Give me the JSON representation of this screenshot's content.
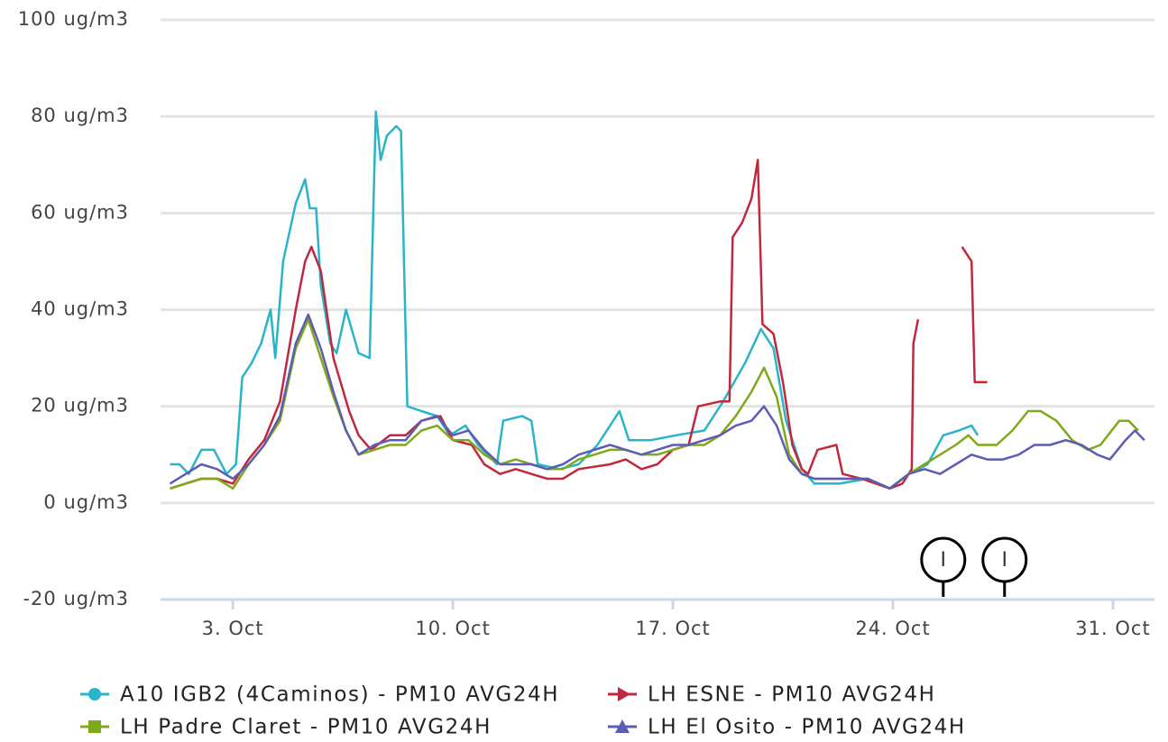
{
  "chart_data": {
    "type": "line",
    "xlim": [
      0.7,
      32.32
    ],
    "xticks": [
      {
        "value": 3,
        "label": "3. Oct"
      },
      {
        "value": 10,
        "label": "10. Oct"
      },
      {
        "value": 17,
        "label": "17. Oct"
      },
      {
        "value": 24,
        "label": "24. Oct"
      },
      {
        "value": 31,
        "label": "31. Oct"
      }
    ],
    "ylim": [
      -20,
      100
    ],
    "yticks": [
      {
        "value": -20,
        "label": "-20 ug/m3"
      },
      {
        "value": 0,
        "label": "0 ug/m3"
      },
      {
        "value": 20,
        "label": "20 ug/m3"
      },
      {
        "value": 40,
        "label": "40 ug/m3"
      },
      {
        "value": 60,
        "label": "60 ug/m3"
      },
      {
        "value": 80,
        "label": "80 ug/m3"
      },
      {
        "value": 100,
        "label": "100 ug/m3"
      }
    ],
    "grid": true,
    "legend": "bottom",
    "series": [
      {
        "name": "A10 IGB2 (4Caminos) - PM10 AVG24H",
        "color": "#2ab4c9",
        "marker": "circle",
        "x": [
          1,
          1.3,
          1.6,
          2,
          2.4,
          2.8,
          3.1,
          3.3,
          3.6,
          3.9,
          4.2,
          4.35,
          4.6,
          5.0,
          5.3,
          5.45,
          5.65,
          5.8,
          6.1,
          6.3,
          6.6,
          7.0,
          7.35,
          7.55,
          7.7,
          7.9,
          8.2,
          8.35,
          8.55,
          9.0,
          9.5,
          9.9,
          10.4,
          10.8,
          11.4,
          11.6,
          12.2,
          12.5,
          12.7,
          13.4,
          14.0,
          14.6,
          15.1,
          15.3,
          15.6,
          16.3,
          17.1,
          18.0,
          18.6,
          19.3,
          19.8,
          20.2,
          20.6,
          21.1,
          21.5,
          22.3,
          23.2,
          23.9,
          24.5,
          25.1,
          25.6,
          26.1,
          26.5,
          26.7
        ],
        "values": [
          8,
          8,
          6,
          11,
          11,
          6,
          8,
          26,
          29,
          33,
          40,
          30,
          50,
          62,
          67,
          61,
          61,
          45,
          33,
          31,
          40,
          31,
          30,
          81,
          71,
          76,
          78,
          77,
          20,
          19,
          18,
          14,
          16,
          12,
          8,
          17,
          18,
          17,
          8,
          7,
          8,
          12,
          17,
          19,
          13,
          13,
          14,
          15,
          21,
          29,
          36,
          32,
          17,
          7,
          4,
          4,
          5,
          3,
          6,
          8,
          14,
          15,
          16,
          14
        ]
      },
      {
        "name": "LH ESNE - PM10 AVG24H",
        "color": "#c1283e",
        "marker": "arrow",
        "x": [
          1,
          2,
          2.5,
          3,
          3.5,
          4,
          4.5,
          5,
          5.3,
          5.5,
          5.8,
          6.2,
          6.7,
          7,
          7.4,
          8,
          8.5,
          9,
          9.6,
          10,
          10.6,
          11,
          11.5,
          12,
          12.5,
          13,
          13.5,
          14,
          15,
          15.5,
          16,
          16.5,
          17,
          17.5,
          17.8,
          18.5,
          18.8,
          18.9,
          19.2,
          19.5,
          19.7,
          19.85,
          20.2,
          20.5,
          20.8,
          21.1,
          21.3,
          21.6,
          22.2,
          22.4,
          23,
          23.9,
          24.3,
          24.6,
          24.65,
          24.8,
          25.5,
          26.2,
          26.3,
          26.5,
          26.6,
          27.0
        ],
        "values": [
          3,
          5,
          5,
          4,
          9,
          13,
          21,
          40,
          50,
          53,
          48,
          30,
          19,
          14,
          11,
          14,
          14,
          17,
          18,
          13,
          12,
          8,
          6,
          7,
          6,
          5,
          5,
          7,
          8,
          9,
          7,
          8,
          11,
          12,
          20,
          21,
          21,
          55,
          58,
          63,
          71,
          37,
          35,
          25,
          12,
          7,
          6,
          11,
          12,
          6,
          5,
          3,
          4,
          7,
          33,
          38,
          null,
          53,
          52,
          50,
          25,
          25
        ]
      },
      {
        "name": "LH Padre Claret - PM10 AVG24H",
        "color": "#7fa81a",
        "marker": "square",
        "x": [
          1,
          2,
          2.5,
          3,
          3.5,
          4,
          4.5,
          5,
          5.4,
          5.8,
          6.2,
          6.6,
          7,
          7.5,
          8,
          8.5,
          9,
          9.5,
          10,
          10.5,
          11,
          11.5,
          12,
          12.5,
          13,
          13.5,
          14,
          14.5,
          15,
          15.5,
          16,
          16.5,
          17,
          17.5,
          18,
          18.5,
          19,
          19.5,
          19.9,
          20.3,
          20.7,
          21.1,
          21.5,
          22.3,
          23.2,
          23.9,
          24.5,
          25,
          25.5,
          26,
          26.4,
          26.7,
          27.3,
          27.8,
          28.3,
          28.7,
          29.2,
          29.7,
          30.2,
          30.6,
          31.2,
          31.5,
          31.8
        ],
        "values": [
          3,
          5,
          5,
          3,
          8,
          12,
          17,
          32,
          38,
          30,
          22,
          15,
          10,
          11,
          12,
          12,
          15,
          16,
          13,
          13,
          10,
          8,
          9,
          8,
          7,
          7,
          9,
          10,
          11,
          11,
          10,
          10,
          11,
          12,
          12,
          14,
          18,
          23,
          28,
          22,
          10,
          6,
          5,
          5,
          5,
          3,
          6,
          8,
          10,
          12,
          14,
          12,
          12,
          15,
          19,
          19,
          17,
          13,
          11,
          12,
          17,
          17,
          15
        ]
      },
      {
        "name": "LH El Osito - PM10 AVG24H",
        "color": "#5c5db2",
        "marker": "triangle",
        "x": [
          1,
          2,
          2.5,
          3,
          3.5,
          4,
          4.5,
          5,
          5.4,
          5.8,
          6.2,
          6.6,
          7,
          7.5,
          8,
          8.5,
          9,
          9.5,
          10,
          10.5,
          11,
          11.5,
          12,
          12.5,
          13,
          13.5,
          14,
          14.5,
          15,
          15.5,
          16,
          16.5,
          17,
          17.5,
          18,
          18.5,
          19,
          19.5,
          19.9,
          20.3,
          20.7,
          21.1,
          21.5,
          22.3,
          23.2,
          23.9,
          24.5,
          25,
          25.5,
          26,
          26.5,
          27,
          27.5,
          28,
          28.5,
          29,
          29.5,
          30,
          30.5,
          30.9,
          31.4,
          31.7,
          32.0
        ],
        "values": [
          4,
          8,
          7,
          5,
          8,
          12,
          18,
          33,
          39,
          32,
          23,
          15,
          10,
          12,
          13,
          13,
          17,
          18,
          14,
          15,
          11,
          8,
          8,
          8,
          7,
          8,
          10,
          11,
          12,
          11,
          10,
          11,
          12,
          12,
          13,
          14,
          16,
          17,
          20,
          16,
          9,
          6,
          5,
          5,
          5,
          3,
          6,
          7,
          6,
          8,
          10,
          9,
          9,
          10,
          12,
          12,
          13,
          12,
          10,
          9,
          13,
          15,
          13
        ]
      }
    ],
    "annotations": [
      {
        "x": 25.6,
        "label": "I"
      },
      {
        "x": 27.55,
        "label": "I"
      }
    ]
  }
}
